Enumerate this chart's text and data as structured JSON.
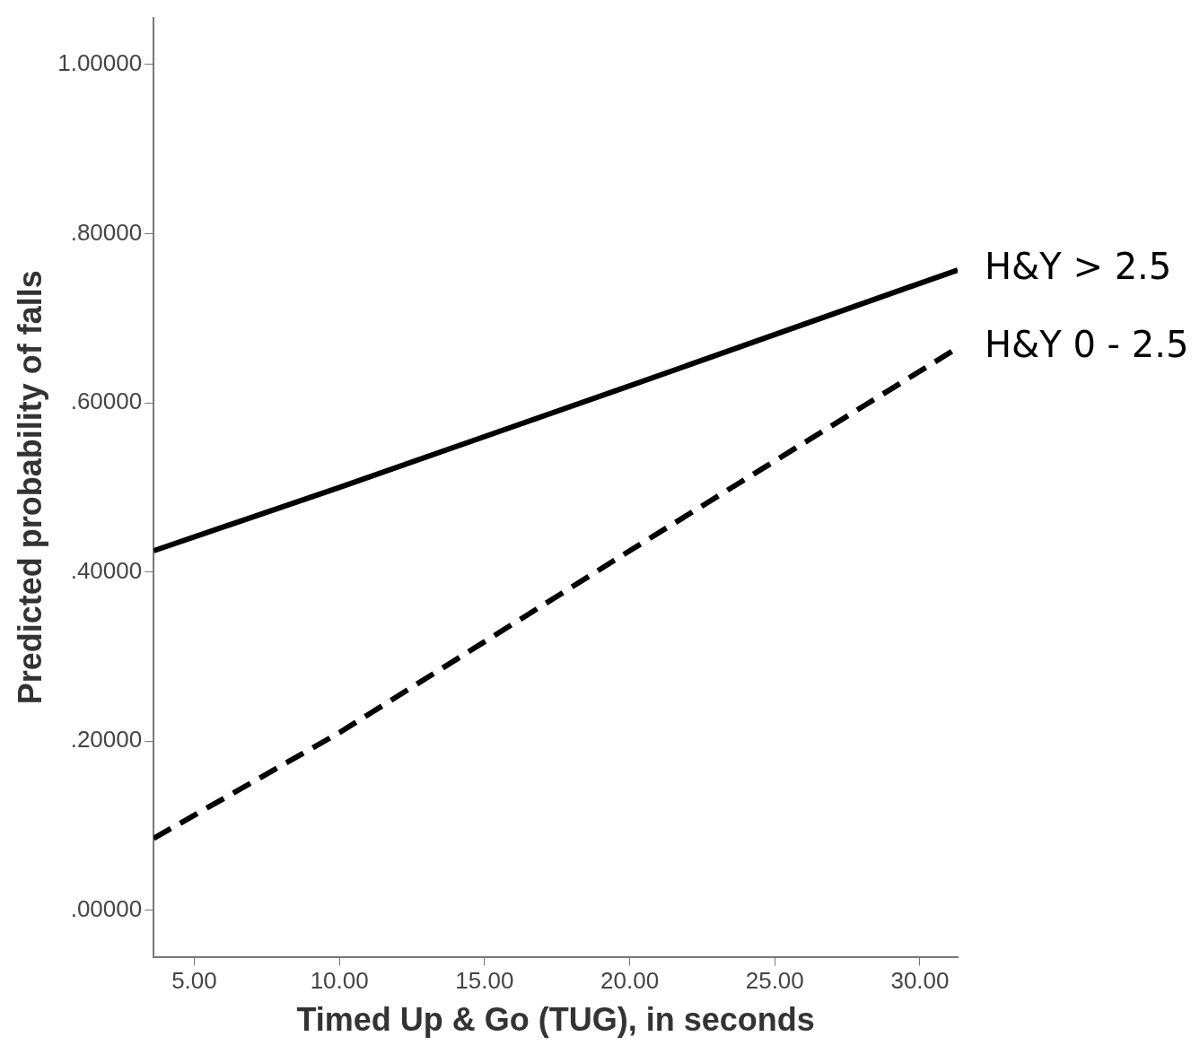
{
  "chart_data": {
    "type": "line",
    "xlabel": "Timed Up & Go (TUG), in seconds",
    "ylabel": "Predicted probability of falls",
    "xlim": [
      3.6,
      31.3
    ],
    "xticks": [
      {
        "value": 5,
        "label": "5.00"
      },
      {
        "value": 10,
        "label": "10.00"
      },
      {
        "value": 15,
        "label": "15.00"
      },
      {
        "value": 20,
        "label": "20.00"
      },
      {
        "value": 25,
        "label": "25.00"
      },
      {
        "value": 30,
        "label": "30.00"
      }
    ],
    "ylim": [
      -0.055,
      1.055
    ],
    "yticks": [
      {
        "value": 0,
        "label": ".00000"
      },
      {
        "value": 0.2,
        "label": ".20000"
      },
      {
        "value": 0.4,
        "label": ".40000"
      },
      {
        "value": 0.6,
        "label": ".60000"
      },
      {
        "value": 0.8,
        "label": ".80000"
      },
      {
        "value": 1,
        "label": "1.00000"
      }
    ],
    "grid": false,
    "legend": false,
    "marker": "none",
    "series": [
      {
        "name": "H&Y > 2.5",
        "color": "#000000",
        "line_style": "solid",
        "x": [
          3.6,
          10,
          20,
          31.3
        ],
        "values": [
          0.425,
          0.5,
          0.62,
          0.757
        ]
      },
      {
        "name": "H&Y 0 - 2.5",
        "color": "#000000",
        "line_style": "dashed",
        "x": [
          3.6,
          10,
          20,
          31.3
        ],
        "values": [
          0.085,
          0.21,
          0.425,
          0.665
        ]
      }
    ]
  }
}
